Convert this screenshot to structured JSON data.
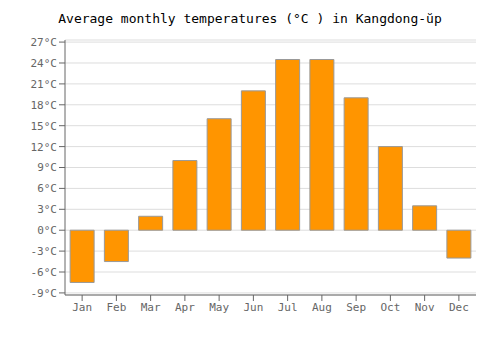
{
  "chart_data": {
    "type": "bar",
    "title": "Average monthly temperatures (°C ) in Kangdong-ŭp",
    "categories": [
      "Jan",
      "Feb",
      "Mar",
      "Apr",
      "May",
      "Jun",
      "Jul",
      "Aug",
      "Sep",
      "Oct",
      "Nov",
      "Dec"
    ],
    "values": [
      -7.5,
      -4.5,
      2.0,
      10.0,
      16.0,
      20.0,
      24.5,
      24.5,
      19.0,
      12.0,
      3.5,
      -4.0
    ],
    "color": "#FF9500",
    "ylim": [
      -9.3,
      27.3
    ],
    "yticks": [
      {
        "value": -9,
        "label": "-9°C"
      },
      {
        "value": -6,
        "label": "-6°C"
      },
      {
        "value": -3,
        "label": "-3°C"
      },
      {
        "value": 0,
        "label": "0°C"
      },
      {
        "value": 3,
        "label": "3°C"
      },
      {
        "value": 6,
        "label": "6°C"
      },
      {
        "value": 9,
        "label": "9°C"
      },
      {
        "value": 12,
        "label": "12°C"
      },
      {
        "value": 15,
        "label": "15°C"
      },
      {
        "value": 18,
        "label": "18°C"
      },
      {
        "value": 21,
        "label": "21°C"
      },
      {
        "value": 24,
        "label": "24°C"
      },
      {
        "value": 27,
        "label": "27°C"
      }
    ],
    "grid": true
  }
}
